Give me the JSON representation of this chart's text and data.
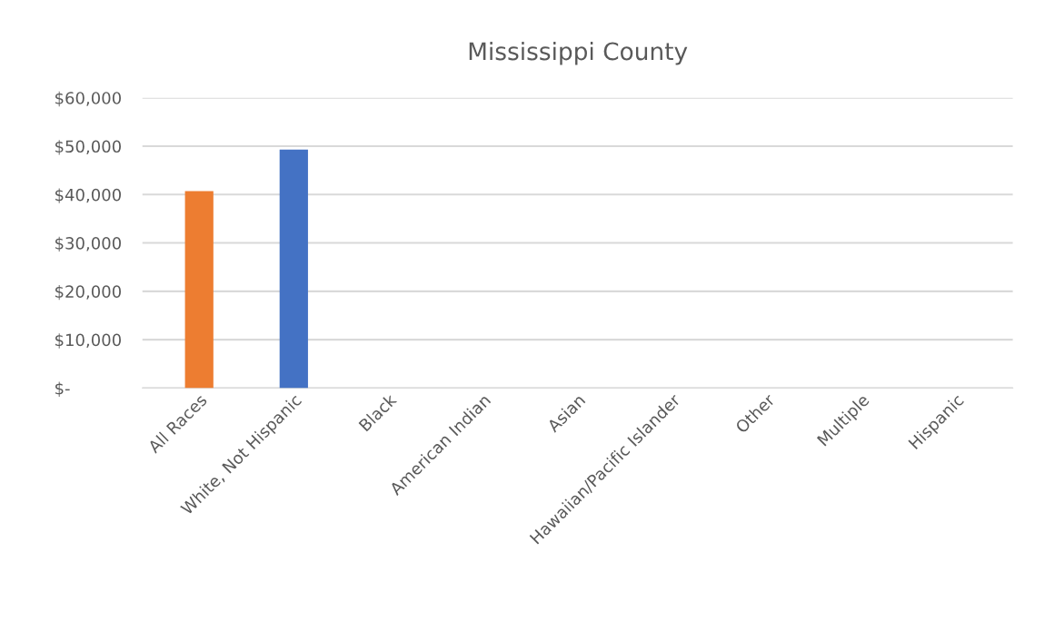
{
  "chart_data": {
    "type": "bar",
    "title": "Mississippi County",
    "categories": [
      "All Races",
      "White, Not Hispanic",
      "Black",
      "American Indian",
      "Asian",
      "Hawaiian/Pacific Islander",
      "Other",
      "Multiple",
      "Hispanic"
    ],
    "values": [
      40700,
      49300,
      null,
      null,
      null,
      null,
      null,
      null,
      null
    ],
    "colors": [
      "#ed7d31",
      "#4472c4",
      "#4472c4",
      "#4472c4",
      "#4472c4",
      "#4472c4",
      "#4472c4",
      "#4472c4",
      "#4472c4"
    ],
    "ylim": [
      0,
      60000
    ],
    "yticks": [
      {
        "value": 0,
        "label": "$-"
      },
      {
        "value": 10000,
        "label": "$10,000"
      },
      {
        "value": 20000,
        "label": "$20,000"
      },
      {
        "value": 30000,
        "label": "$30,000"
      },
      {
        "value": 40000,
        "label": "$40,000"
      },
      {
        "value": 50000,
        "label": "$50,000"
      },
      {
        "value": 60000,
        "label": "$60,000"
      }
    ],
    "grid": "y",
    "legend": false
  }
}
